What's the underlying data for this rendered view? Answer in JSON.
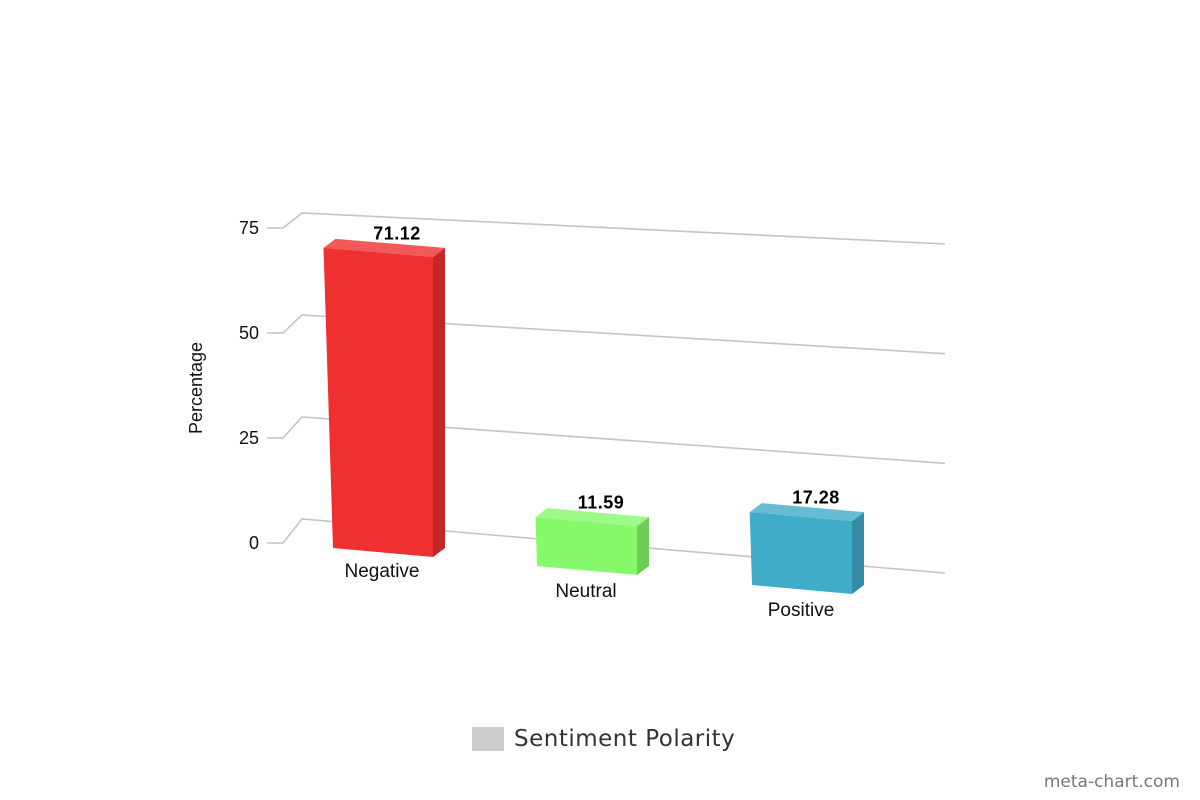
{
  "chart_data": {
    "type": "bar",
    "ylabel": "Percentage",
    "ylim": [
      0,
      75
    ],
    "yticks": [
      "0",
      "25",
      "50",
      "75"
    ],
    "categories": [
      "Negative",
      "Neutral",
      "Positive"
    ],
    "series": [
      {
        "name": "Sentiment Polarity",
        "values": [
          71.12,
          11.59,
          17.28
        ],
        "value_labels": [
          "71.12",
          "11.59",
          "17.28"
        ]
      }
    ],
    "bar_colors": [
      "#ef3030",
      "#86f96a",
      "#40acc8"
    ],
    "legend_position": "bottom-center",
    "grid": true,
    "style": "3d"
  },
  "legend": {
    "label": "Sentiment Polarity",
    "swatch_color": "#cccccc"
  },
  "credit": "meta-chart.com"
}
